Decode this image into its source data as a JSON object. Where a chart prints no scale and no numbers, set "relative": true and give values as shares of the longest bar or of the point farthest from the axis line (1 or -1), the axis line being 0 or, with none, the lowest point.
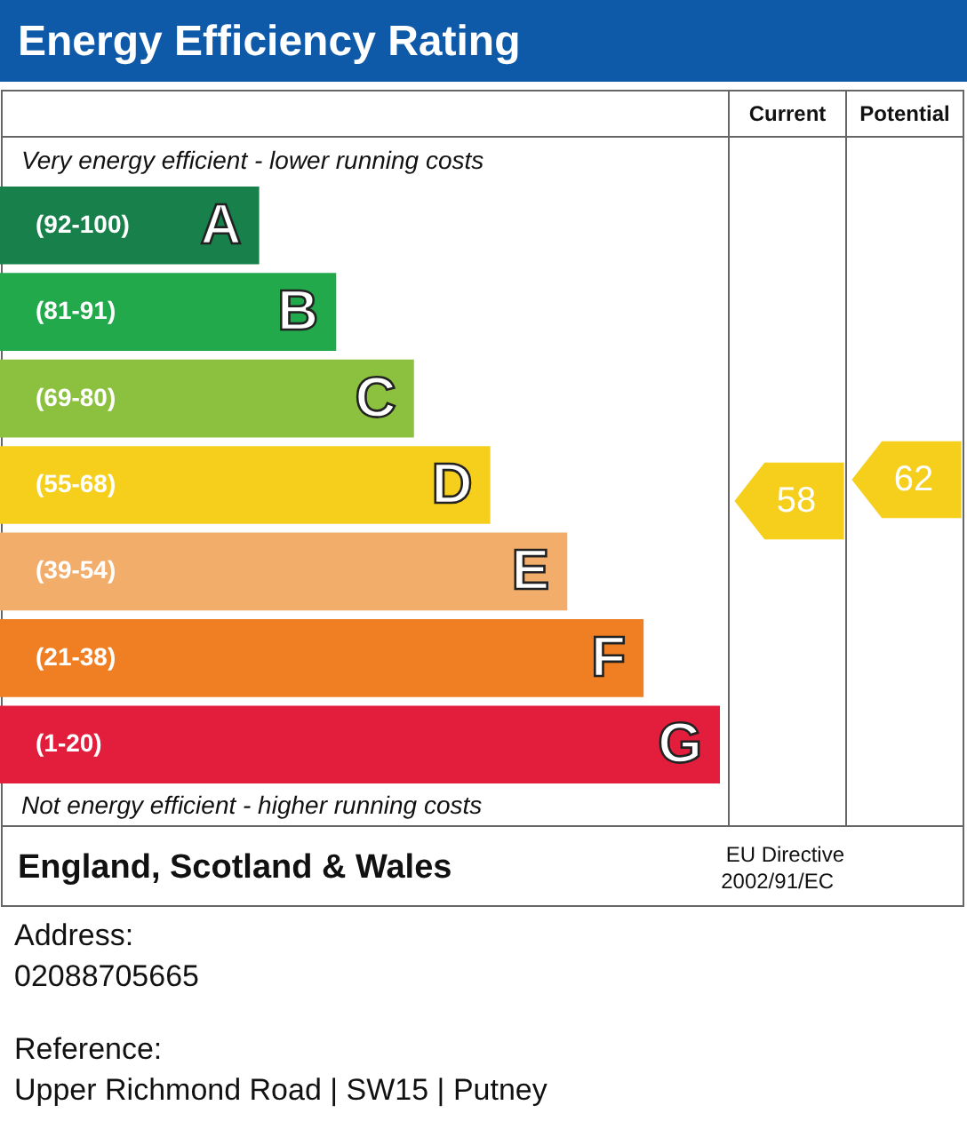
{
  "chart_data": {
    "type": "bar",
    "orientation": "horizontal",
    "relative": true,
    "title": "Energy Efficiency Rating",
    "categories": [
      "(92-100)",
      "(81-91)",
      "(69-80)",
      "(55-68)",
      "(39-54)",
      "(21-38)",
      "(1-20)"
    ],
    "values": [
      0.36,
      0.467,
      0.575,
      0.681,
      0.788,
      0.894,
      1
    ],
    "colors": [
      "#17804b",
      "#21a94b",
      "#8cc13f",
      "#f5cf1b",
      "#f3ad6b",
      "#ef7f22",
      "#e31d3c"
    ],
    "annotations": [
      {
        "text": "A",
        "y": "(92-100)"
      },
      {
        "text": "B",
        "y": "(81-91)"
      },
      {
        "text": "C",
        "y": "(69-80)"
      },
      {
        "text": "D",
        "y": "(55-68)"
      },
      {
        "text": "E",
        "y": "(39-54)"
      },
      {
        "text": "F",
        "y": "(21-38)"
      },
      {
        "text": "G",
        "y": "(1-20)"
      },
      "58",
      "62",
      "Current",
      "Potential",
      "Very energy efficient - lower running costs",
      "Not energy efficient - higher running costs",
      "England, Scotland & Wales",
      "EU Directive",
      "2002/91/EC",
      "Address:",
      "02088705665",
      "Reference:",
      "Upper Richmond Road | SW15 | Putney"
    ]
  }
}
